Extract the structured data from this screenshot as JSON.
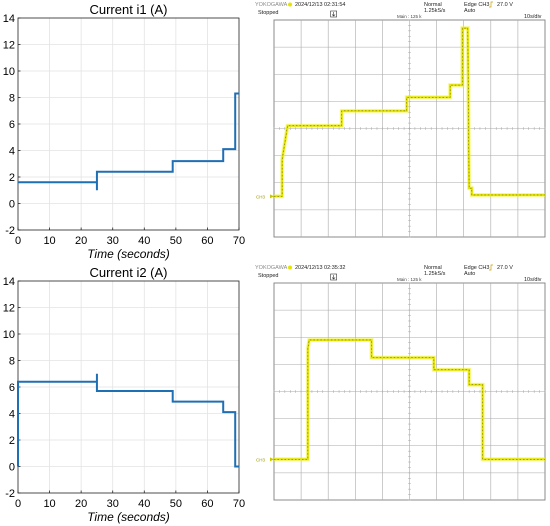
{
  "chart_data": [
    {
      "type": "line",
      "title": "Current i1 (A)",
      "xlabel": "Time (seconds)",
      "ylabel": "",
      "xlim": [
        0,
        70
      ],
      "ylim": [
        -2,
        14
      ],
      "xticks": [
        0,
        10,
        20,
        30,
        40,
        50,
        60,
        70
      ],
      "yticks": [
        -2,
        0,
        2,
        4,
        6,
        8,
        10,
        12,
        14
      ],
      "grid": true,
      "color": "#1f6fb4",
      "series": [
        {
          "x": [
            0,
            25,
            25,
            25,
            49,
            49,
            65,
            65,
            68.8,
            68.8,
            70
          ],
          "y": [
            1.6,
            1.6,
            1.0,
            2.4,
            2.4,
            3.2,
            3.2,
            4.1,
            4.1,
            8.3,
            8.3
          ]
        }
      ]
    },
    {
      "type": "line",
      "title": "Current i2 (A)",
      "xlabel": "Time (seconds)",
      "ylabel": "",
      "xlim": [
        0,
        70
      ],
      "ylim": [
        -2,
        14
      ],
      "xticks": [
        0,
        10,
        20,
        30,
        40,
        50,
        60,
        70
      ],
      "yticks": [
        -2,
        0,
        2,
        4,
        6,
        8,
        10,
        12,
        14
      ],
      "grid": true,
      "color": "#1f6fb4",
      "series": [
        {
          "x": [
            0,
            0,
            25,
            25,
            25,
            49,
            49,
            65,
            65,
            68.8,
            68.8,
            70
          ],
          "y": [
            0,
            6.4,
            6.4,
            7.0,
            5.7,
            5.7,
            4.9,
            4.9,
            4.1,
            4.1,
            0,
            0
          ]
        }
      ]
    },
    {
      "type": "line",
      "scope": {
        "brand": "YOKOGAWA",
        "datetime": "2024/12/13 02:31:54",
        "status": "Stopped",
        "mode": "Normal",
        "rate": "1.25kS/s",
        "trigger": "Edge CH3",
        "trigger_level": "27.0 V",
        "trigger_mode": "Auto",
        "timebase": "10s/div",
        "main_label": "Main : 125 k",
        "channel_label": "CH3"
      },
      "divisions": {
        "x": 10,
        "y": 8
      },
      "ground_div": 1.5,
      "trace_color": "#e4e400",
      "series": [
        {
          "x": [
            0,
            0.3,
            0.3,
            0.5,
            0.6,
            2.5,
            2.5,
            4.9,
            4.9,
            6.5,
            6.5,
            6.95,
            6.95,
            7.15,
            7.2,
            7.3,
            7.3,
            10
          ],
          "y": [
            0,
            0,
            1.35,
            2.6,
            2.6,
            2.6,
            3.15,
            3.15,
            3.65,
            3.65,
            4.1,
            4.1,
            6.2,
            6.2,
            0.3,
            0.3,
            0.05,
            0.05
          ]
        }
      ]
    },
    {
      "type": "line",
      "scope": {
        "brand": "YOKOGAWA",
        "datetime": "2024/12/13 02:35:32",
        "status": "Stopped",
        "mode": "Normal",
        "rate": "1.25kS/s",
        "trigger": "Edge CH3",
        "trigger_level": "27.0 V",
        "trigger_mode": "Auto",
        "timebase": "10s/div",
        "main_label": "Main : 125 k",
        "channel_label": "CH3"
      },
      "divisions": {
        "x": 10,
        "y": 8
      },
      "ground_div": 1.5,
      "trace_color": "#e4e400",
      "series": [
        {
          "x": [
            0,
            1.25,
            1.25,
            1.3,
            1.35,
            3.6,
            3.6,
            5.9,
            5.9,
            7.2,
            7.2,
            7.7,
            7.7,
            10
          ],
          "y": [
            0,
            0,
            4.1,
            4.4,
            4.4,
            4.4,
            3.75,
            3.75,
            3.3,
            3.3,
            2.75,
            2.75,
            0,
            0
          ]
        }
      ]
    }
  ]
}
